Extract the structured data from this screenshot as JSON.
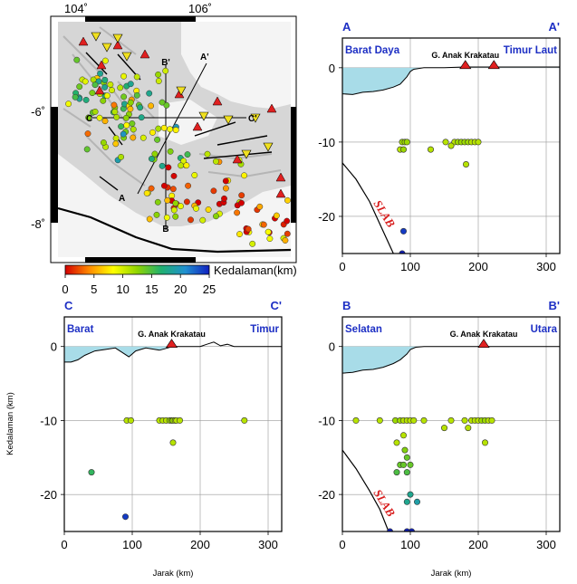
{
  "figure": {
    "colors": {
      "water": "#a8dce8",
      "eq_outline": "#333333",
      "volcano": "#e02020",
      "label_blue": "#1d2fc4",
      "slab_red": "#d81e1e",
      "frame": "#000000",
      "grid": "#999999"
    }
  },
  "map": {
    "lon_labels": [
      "104˚",
      "106˚"
    ],
    "lat_labels": [
      "-6˚",
      "-8˚"
    ],
    "line_labels": {
      "A": "A",
      "A2": "A'",
      "B": "B",
      "B2": "B'",
      "C": "C",
      "C2": "C'"
    },
    "land_color": "#d8d8d8"
  },
  "colorbar": {
    "title": "Kedalaman(km)",
    "ticks": [
      "0",
      "5",
      "10",
      "15",
      "20",
      "25"
    ],
    "stops": [
      "#d40000",
      "#ff8a00",
      "#ffff00",
      "#8fd400",
      "#20b070",
      "#2090d0",
      "#1020c0"
    ]
  },
  "chart_data": [
    {
      "type": "scatter",
      "id": "AA",
      "section_start": "A",
      "section_end": "A'",
      "left_label": "Barat Daya",
      "right_label": "Timur Laut",
      "volcano_label": "G. Anak Krakatau",
      "slab_label": "SLAB",
      "xlabel": "",
      "ylabel": "",
      "xlim": [
        0,
        320
      ],
      "ylim": [
        -25,
        4
      ],
      "xticks": [
        0,
        100,
        200,
        300
      ],
      "yticks": [
        0,
        -10,
        -20
      ],
      "grid": true,
      "volcanoes": [
        181,
        223
      ],
      "bathymetry": [
        [
          0,
          -3.5
        ],
        [
          15,
          -3.6
        ],
        [
          30,
          -3.3
        ],
        [
          45,
          -3.2
        ],
        [
          60,
          -3.0
        ],
        [
          75,
          -2.6
        ],
        [
          85,
          -2.2
        ],
        [
          95,
          -1.2
        ],
        [
          100,
          -0.5
        ],
        [
          105,
          -0.2
        ],
        [
          120,
          0
        ],
        [
          150,
          0
        ],
        [
          180,
          0.1
        ],
        [
          230,
          0.1
        ],
        [
          320,
          0.1
        ]
      ],
      "slab": [
        [
          0,
          -12.8
        ],
        [
          20,
          -15
        ],
        [
          40,
          -18
        ],
        [
          60,
          -22
        ],
        [
          75,
          -25
        ]
      ],
      "points": [
        [
          88,
          -10,
          12
        ],
        [
          92,
          -10,
          12
        ],
        [
          95,
          -10,
          12
        ],
        [
          85,
          -11,
          11
        ],
        [
          90,
          -11,
          12
        ],
        [
          130,
          -11,
          11
        ],
        [
          152,
          -10,
          11
        ],
        [
          165,
          -10,
          11
        ],
        [
          170,
          -10,
          12
        ],
        [
          175,
          -10,
          12
        ],
        [
          180,
          -10,
          12
        ],
        [
          185,
          -10,
          12
        ],
        [
          190,
          -10,
          11
        ],
        [
          195,
          -10,
          11
        ],
        [
          200,
          -10,
          11
        ],
        [
          160,
          -10.5,
          11
        ],
        [
          182,
          -13,
          11
        ],
        [
          90,
          -22,
          24
        ],
        [
          88,
          -25,
          25
        ]
      ]
    },
    {
      "type": "scatter",
      "id": "CC",
      "section_start": "C",
      "section_end": "C'",
      "left_label": "Barat",
      "right_label": "Timur",
      "volcano_label": "G. Anak Krakatau",
      "xlabel": "Kedalaman (km)",
      "ylabel": "",
      "xlim": [
        0,
        320
      ],
      "ylim": [
        -25,
        4
      ],
      "xticks": [
        0,
        100,
        200,
        300
      ],
      "yticks": [
        0,
        -10,
        -20
      ],
      "grid": true,
      "volcanoes": [
        158
      ],
      "bathymetry": [
        [
          0,
          -2.1
        ],
        [
          10,
          -2.1
        ],
        [
          20,
          -1.8
        ],
        [
          30,
          -1.2
        ],
        [
          45,
          -0.6
        ],
        [
          60,
          -0.4
        ],
        [
          75,
          -0.2
        ],
        [
          85,
          -0.8
        ],
        [
          95,
          -1.4
        ],
        [
          105,
          -0.6
        ],
        [
          120,
          -0.2
        ],
        [
          140,
          -0.5
        ],
        [
          160,
          0
        ],
        [
          200,
          0
        ],
        [
          210,
          0.3
        ],
        [
          220,
          0.6
        ],
        [
          230,
          0.1
        ],
        [
          240,
          0.3
        ],
        [
          250,
          0
        ],
        [
          320,
          0
        ]
      ],
      "points": [
        [
          92,
          -10,
          11
        ],
        [
          98,
          -10,
          11
        ],
        [
          140,
          -10,
          11
        ],
        [
          145,
          -10,
          11
        ],
        [
          150,
          -10,
          11
        ],
        [
          155,
          -10,
          12
        ],
        [
          158,
          -10,
          12
        ],
        [
          160,
          -10,
          12
        ],
        [
          163,
          -10,
          11
        ],
        [
          165,
          -10,
          11
        ],
        [
          170,
          -10,
          11
        ],
        [
          265,
          -10,
          11
        ],
        [
          160,
          -13,
          11
        ],
        [
          40,
          -17,
          16
        ],
        [
          90,
          -23,
          24
        ]
      ]
    },
    {
      "type": "scatter",
      "id": "BB",
      "section_start": "B",
      "section_end": "B'",
      "left_label": "Selatan",
      "right_label": "Utara",
      "volcano_label": "G. Anak Krakatau",
      "slab_label": "SLAB",
      "xlabel": "Jarak (km)",
      "ylabel": "",
      "xlim": [
        0,
        320
      ],
      "ylim": [
        -25,
        4
      ],
      "xticks": [
        0,
        100,
        200,
        300
      ],
      "yticks": [
        0,
        -10,
        -20
      ],
      "grid": true,
      "volcanoes": [
        208
      ],
      "bathymetry": [
        [
          0,
          -3.6
        ],
        [
          15,
          -3.5
        ],
        [
          30,
          -3.2
        ],
        [
          45,
          -3.1
        ],
        [
          60,
          -2.8
        ],
        [
          75,
          -2.3
        ],
        [
          85,
          -1.8
        ],
        [
          95,
          -1.0
        ],
        [
          100,
          -0.4
        ],
        [
          108,
          -0.1
        ],
        [
          120,
          0
        ],
        [
          200,
          0
        ],
        [
          320,
          0
        ]
      ],
      "slab": [
        [
          0,
          -14
        ],
        [
          20,
          -16.5
        ],
        [
          40,
          -19.5
        ],
        [
          55,
          -22
        ],
        [
          68,
          -25
        ]
      ],
      "points": [
        [
          20,
          -10,
          11
        ],
        [
          55,
          -10,
          11
        ],
        [
          78,
          -10,
          12
        ],
        [
          85,
          -10,
          12
        ],
        [
          90,
          -10,
          11
        ],
        [
          95,
          -10,
          11
        ],
        [
          100,
          -10,
          11
        ],
        [
          105,
          -10,
          11
        ],
        [
          120,
          -10,
          11
        ],
        [
          160,
          -10,
          11
        ],
        [
          180,
          -10,
          11
        ],
        [
          190,
          -10,
          11
        ],
        [
          195,
          -10,
          11
        ],
        [
          200,
          -10,
          11
        ],
        [
          205,
          -10,
          12
        ],
        [
          210,
          -10,
          12
        ],
        [
          215,
          -10,
          11
        ],
        [
          220,
          -10,
          11
        ],
        [
          150,
          -11,
          11
        ],
        [
          185,
          -11,
          11
        ],
        [
          90,
          -12,
          11
        ],
        [
          80,
          -13,
          11
        ],
        [
          210,
          -13,
          11
        ],
        [
          92,
          -14,
          13
        ],
        [
          95,
          -15,
          14
        ],
        [
          85,
          -16,
          14
        ],
        [
          90,
          -16,
          14
        ],
        [
          100,
          -16,
          14
        ],
        [
          80,
          -17,
          15
        ],
        [
          95,
          -17,
          15
        ],
        [
          100,
          -20,
          18
        ],
        [
          110,
          -21,
          19
        ],
        [
          95,
          -21,
          18
        ],
        [
          70,
          -25,
          25
        ],
        [
          95,
          -25,
          25
        ],
        [
          102,
          -25,
          25
        ]
      ]
    }
  ]
}
